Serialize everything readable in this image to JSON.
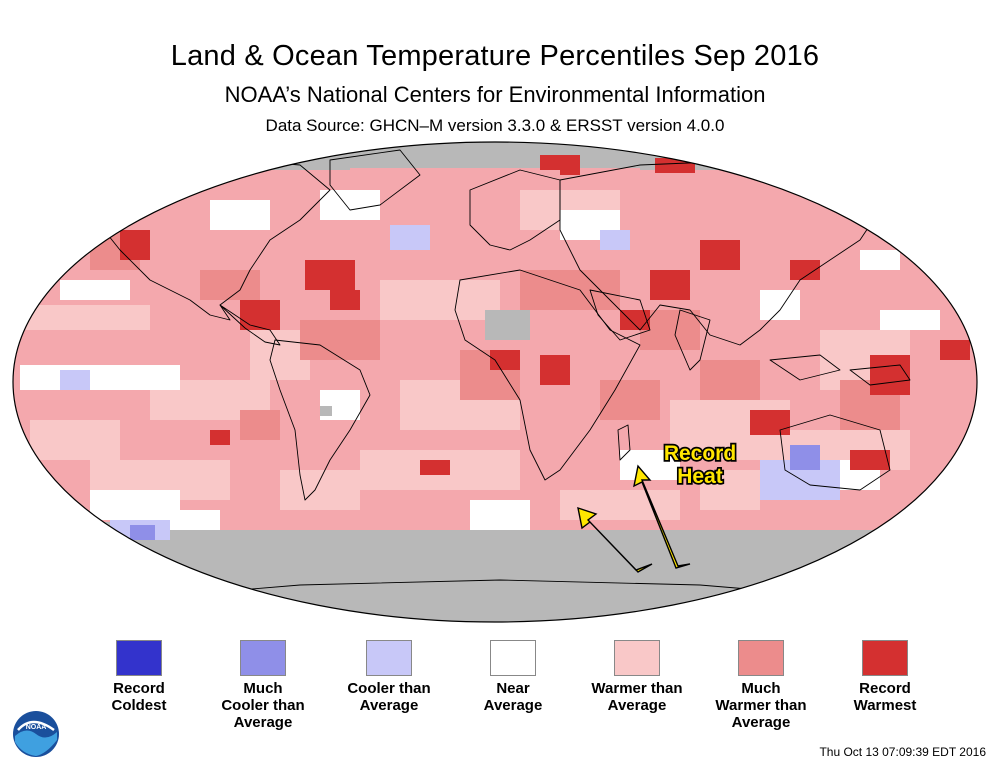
{
  "header": {
    "title": "Land & Ocean Temperature Percentiles Sep 2016",
    "subtitle": "NOAA’s National Centers for Environmental Information",
    "source": "Data Source: GHCN–M version 3.3.0 & ERSST version 4.0.0"
  },
  "annotation": {
    "line1": "Record",
    "line2": "Heat",
    "color": "#ffe600"
  },
  "legend": [
    {
      "lines": [
        "Record",
        "Coldest"
      ],
      "color": "#3333cc"
    },
    {
      "lines": [
        "Much",
        "Cooler than",
        "Average"
      ],
      "color": "#8f8fe8"
    },
    {
      "lines": [
        "Cooler than",
        "Average"
      ],
      "color": "#c8c8f8"
    },
    {
      "lines": [
        "Near",
        "Average"
      ],
      "color": "#ffffff"
    },
    {
      "lines": [
        "Warmer than",
        "Average"
      ],
      "color": "#f9c8c8"
    },
    {
      "lines": [
        "Much",
        "Warmer than",
        "Average"
      ],
      "color": "#ec8c8c"
    },
    {
      "lines": [
        "Record",
        "Warmest"
      ],
      "color": "#d43030"
    }
  ],
  "colors": {
    "background": "#f4a8ad",
    "nodata": "#b8b8b8",
    "record_warm": "#d43030",
    "much_warm": "#ec8c8c",
    "warm": "#f9c8c8",
    "near": "#ffffff",
    "cool": "#c8c8f8",
    "much_cool": "#8f8fe8"
  },
  "footer": {
    "timestamp": "Thu Oct 13 07:09:39 EDT 2016"
  },
  "logo": {
    "icon": "noaa-logo-icon",
    "text": "NOAA"
  }
}
